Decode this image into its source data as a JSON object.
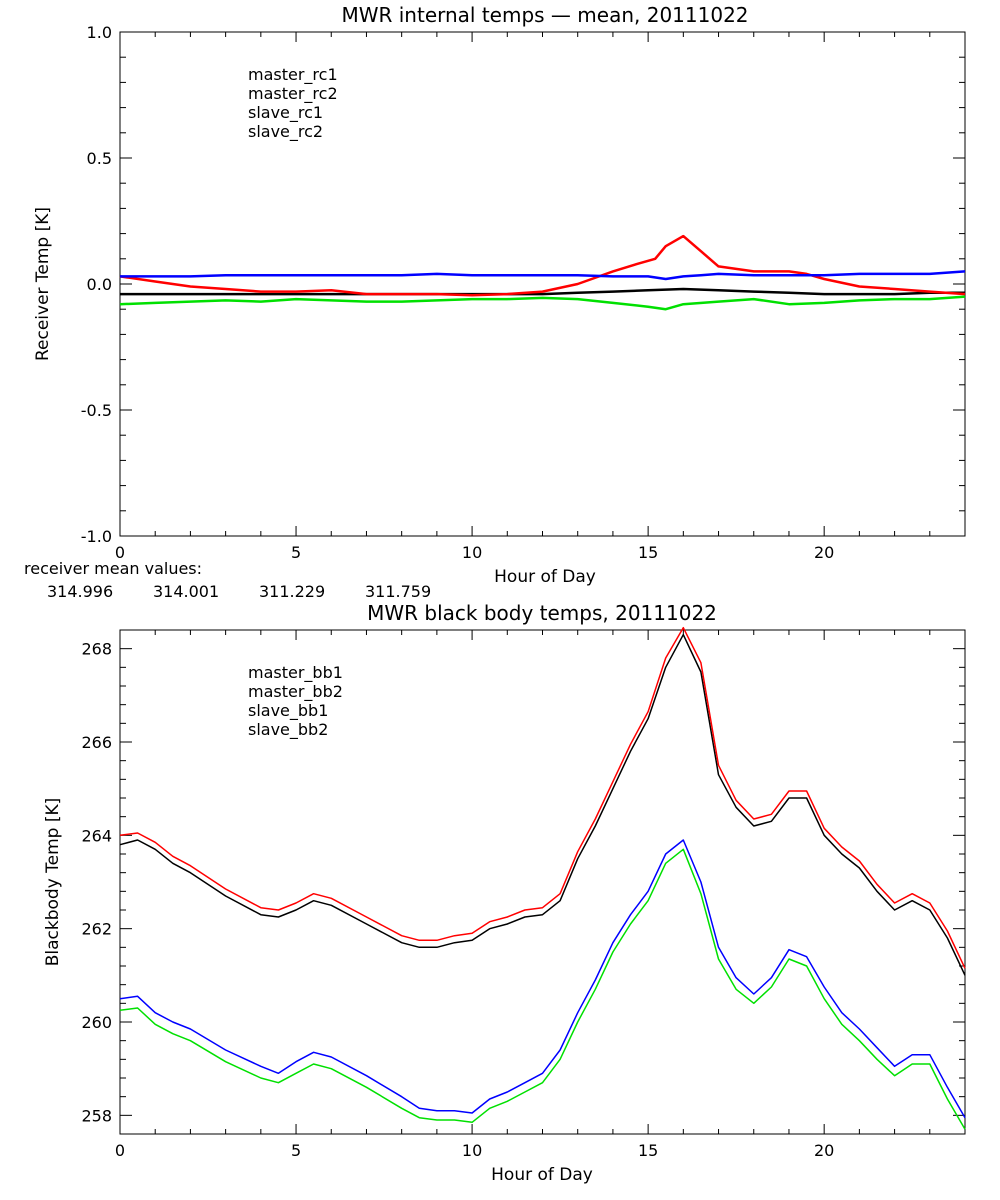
{
  "chart_data": [
    {
      "type": "line",
      "title": "MWR internal temps — mean, 20111022",
      "xlabel": "Hour of Day",
      "ylabel": "Receiver Temp [K]",
      "xlim": [
        0,
        24
      ],
      "ylim": [
        -1.0,
        1.0
      ],
      "x_ticks": [
        "0",
        "5",
        "10",
        "15",
        "20"
      ],
      "y_ticks": [
        "-1.0",
        "-0.5",
        "0.0",
        "0.5",
        "1.0"
      ],
      "grid": false,
      "legend_placement": "top-left",
      "series": [
        {
          "name": "master_rc1",
          "color": "#000000",
          "x": [
            0,
            1,
            2,
            3,
            4,
            5,
            6,
            7,
            8,
            9,
            10,
            11,
            12,
            13,
            14,
            15,
            16,
            17,
            18,
            19,
            20,
            21,
            22,
            23,
            24
          ],
          "y": [
            -0.04,
            -0.04,
            -0.04,
            -0.04,
            -0.04,
            -0.04,
            -0.04,
            -0.04,
            -0.04,
            -0.04,
            -0.04,
            -0.04,
            -0.04,
            -0.035,
            -0.03,
            -0.025,
            -0.02,
            -0.025,
            -0.03,
            -0.035,
            -0.04,
            -0.04,
            -0.04,
            -0.035,
            -0.035
          ]
        },
        {
          "name": "master_rc2",
          "color": "#ff0000",
          "x": [
            0,
            1,
            2,
            3,
            4,
            5,
            6,
            7,
            8,
            9,
            10,
            11,
            12,
            13,
            14,
            14.7,
            15.2,
            15.5,
            16,
            16.5,
            17,
            18,
            19,
            19.5,
            20,
            21,
            22,
            23,
            24
          ],
          "y": [
            0.03,
            0.01,
            -0.01,
            -0.02,
            -0.03,
            -0.03,
            -0.025,
            -0.04,
            -0.04,
            -0.04,
            -0.045,
            -0.04,
            -0.03,
            0.0,
            0.05,
            0.08,
            0.1,
            0.15,
            0.19,
            0.13,
            0.07,
            0.05,
            0.05,
            0.04,
            0.02,
            -0.01,
            -0.02,
            -0.03,
            -0.04
          ]
        },
        {
          "name": "slave_rc1",
          "color": "#0000ff",
          "x": [
            0,
            1,
            2,
            3,
            4,
            5,
            6,
            7,
            8,
            9,
            10,
            11,
            12,
            13,
            14,
            15,
            15.5,
            16,
            16.5,
            17,
            18,
            19,
            20,
            21,
            22,
            23,
            24
          ],
          "y": [
            0.03,
            0.03,
            0.03,
            0.035,
            0.035,
            0.035,
            0.035,
            0.035,
            0.035,
            0.04,
            0.035,
            0.035,
            0.035,
            0.035,
            0.03,
            0.03,
            0.02,
            0.03,
            0.035,
            0.04,
            0.035,
            0.035,
            0.035,
            0.04,
            0.04,
            0.04,
            0.05
          ]
        },
        {
          "name": "slave_rc2",
          "color": "#00e000",
          "x": [
            0,
            1,
            2,
            3,
            4,
            5,
            6,
            7,
            8,
            9,
            10,
            11,
            12,
            13,
            14,
            15,
            15.5,
            16,
            17,
            18,
            19,
            20,
            21,
            22,
            23,
            24
          ],
          "y": [
            -0.08,
            -0.075,
            -0.07,
            -0.065,
            -0.07,
            -0.06,
            -0.065,
            -0.07,
            -0.07,
            -0.065,
            -0.06,
            -0.06,
            -0.055,
            -0.06,
            -0.075,
            -0.09,
            -0.1,
            -0.08,
            -0.07,
            -0.06,
            -0.08,
            -0.075,
            -0.065,
            -0.06,
            -0.06,
            -0.05
          ]
        }
      ],
      "annotation": {
        "label": "receiver mean values:",
        "values": [
          {
            "text": "314.996",
            "color": "#000000"
          },
          {
            "text": "314.001",
            "color": "#ff0000"
          },
          {
            "text": "311.229",
            "color": "#0000ff"
          },
          {
            "text": "311.759",
            "color": "#00e000"
          }
        ]
      }
    },
    {
      "type": "line",
      "title": "MWR black body temps, 20111022",
      "xlabel": "Hour of Day",
      "ylabel": "Blackbody Temp [K]",
      "xlim": [
        0,
        24
      ],
      "ylim": [
        257.6,
        268.4
      ],
      "x_ticks": [
        "0",
        "5",
        "10",
        "15",
        "20"
      ],
      "y_ticks": [
        "258",
        "260",
        "262",
        "264",
        "266",
        "268"
      ],
      "grid": false,
      "legend_placement": "top-left",
      "series": [
        {
          "name": "master_bb1",
          "color": "#000000",
          "x": [
            0,
            0.5,
            1,
            1.5,
            2,
            3,
            4,
            4.5,
            5,
            5.5,
            6,
            7,
            8,
            8.5,
            9,
            9.5,
            10,
            10.5,
            11,
            11.5,
            12,
            12.5,
            13,
            13.5,
            14,
            14.5,
            15,
            15.5,
            16,
            16.5,
            17,
            17.5,
            18,
            18.5,
            19,
            19.5,
            20,
            20.5,
            21,
            21.5,
            22,
            22.5,
            23,
            23.5,
            24
          ],
          "y": [
            263.8,
            263.9,
            263.7,
            263.4,
            263.2,
            262.7,
            262.3,
            262.25,
            262.4,
            262.6,
            262.5,
            262.1,
            261.7,
            261.6,
            261.6,
            261.7,
            261.75,
            262.0,
            262.1,
            262.25,
            262.3,
            262.6,
            263.5,
            264.2,
            265.0,
            265.8,
            266.5,
            267.6,
            268.3,
            267.5,
            265.3,
            264.6,
            264.2,
            264.3,
            264.8,
            264.8,
            264.0,
            263.6,
            263.3,
            262.8,
            262.4,
            262.6,
            262.4,
            261.8,
            261.0
          ]
        },
        {
          "name": "master_bb2",
          "color": "#ff0000",
          "x": [
            0,
            0.5,
            1,
            1.5,
            2,
            3,
            4,
            4.5,
            5,
            5.5,
            6,
            7,
            8,
            8.5,
            9,
            9.5,
            10,
            10.5,
            11,
            11.5,
            12,
            12.5,
            13,
            13.5,
            14,
            14.5,
            15,
            15.5,
            16,
            16.5,
            17,
            17.5,
            18,
            18.5,
            19,
            19.5,
            20,
            20.5,
            21,
            21.5,
            22,
            22.5,
            23,
            23.5,
            24
          ],
          "y": [
            264.0,
            264.05,
            263.85,
            263.55,
            263.35,
            262.85,
            262.45,
            262.4,
            262.55,
            262.75,
            262.65,
            262.25,
            261.85,
            261.75,
            261.75,
            261.85,
            261.9,
            262.15,
            262.25,
            262.4,
            262.45,
            262.75,
            263.65,
            264.35,
            265.15,
            265.95,
            266.65,
            267.8,
            268.45,
            267.7,
            265.5,
            264.75,
            264.35,
            264.45,
            264.95,
            264.95,
            264.15,
            263.75,
            263.45,
            262.95,
            262.55,
            262.75,
            262.55,
            261.95,
            261.15
          ]
        },
        {
          "name": "slave_bb1",
          "color": "#0000ff",
          "x": [
            0,
            0.5,
            1,
            1.5,
            2,
            3,
            4,
            4.5,
            5,
            5.5,
            6,
            7,
            8,
            8.5,
            9,
            9.5,
            10,
            10.5,
            11,
            11.5,
            12,
            12.5,
            13,
            13.5,
            14,
            14.5,
            15,
            15.5,
            16,
            16.5,
            17,
            17.5,
            18,
            18.5,
            19,
            19.5,
            20,
            20.5,
            21,
            21.5,
            22,
            22.5,
            23,
            23.5,
            24
          ],
          "y": [
            260.5,
            260.55,
            260.2,
            260.0,
            259.85,
            259.4,
            259.05,
            258.9,
            259.15,
            259.35,
            259.25,
            258.85,
            258.4,
            258.15,
            258.1,
            258.1,
            258.05,
            258.35,
            258.5,
            258.7,
            258.9,
            259.4,
            260.2,
            260.9,
            261.7,
            262.3,
            262.8,
            263.6,
            263.9,
            263.0,
            261.6,
            260.95,
            260.6,
            260.95,
            261.55,
            261.4,
            260.75,
            260.2,
            259.85,
            259.45,
            259.05,
            259.3,
            259.3,
            258.6,
            257.95
          ]
        },
        {
          "name": "slave_bb2",
          "color": "#00e000",
          "x": [
            0,
            0.5,
            1,
            1.5,
            2,
            3,
            4,
            4.5,
            5,
            5.5,
            6,
            7,
            8,
            8.5,
            9,
            9.5,
            10,
            10.5,
            11,
            11.5,
            12,
            12.5,
            13,
            13.5,
            14,
            14.5,
            15,
            15.5,
            16,
            16.5,
            17,
            17.5,
            18,
            18.5,
            19,
            19.5,
            20,
            20.5,
            21,
            21.5,
            22,
            22.5,
            23,
            23.5,
            24
          ],
          "y": [
            260.25,
            260.3,
            259.95,
            259.75,
            259.6,
            259.15,
            258.8,
            258.7,
            258.9,
            259.1,
            259.0,
            258.6,
            258.15,
            257.95,
            257.9,
            257.9,
            257.85,
            258.15,
            258.3,
            258.5,
            258.7,
            259.2,
            260.0,
            260.7,
            261.5,
            262.1,
            262.6,
            263.4,
            263.7,
            262.75,
            261.35,
            260.7,
            260.4,
            260.75,
            261.35,
            261.2,
            260.5,
            259.95,
            259.6,
            259.2,
            258.85,
            259.1,
            259.1,
            258.35,
            257.7
          ]
        }
      ]
    }
  ]
}
